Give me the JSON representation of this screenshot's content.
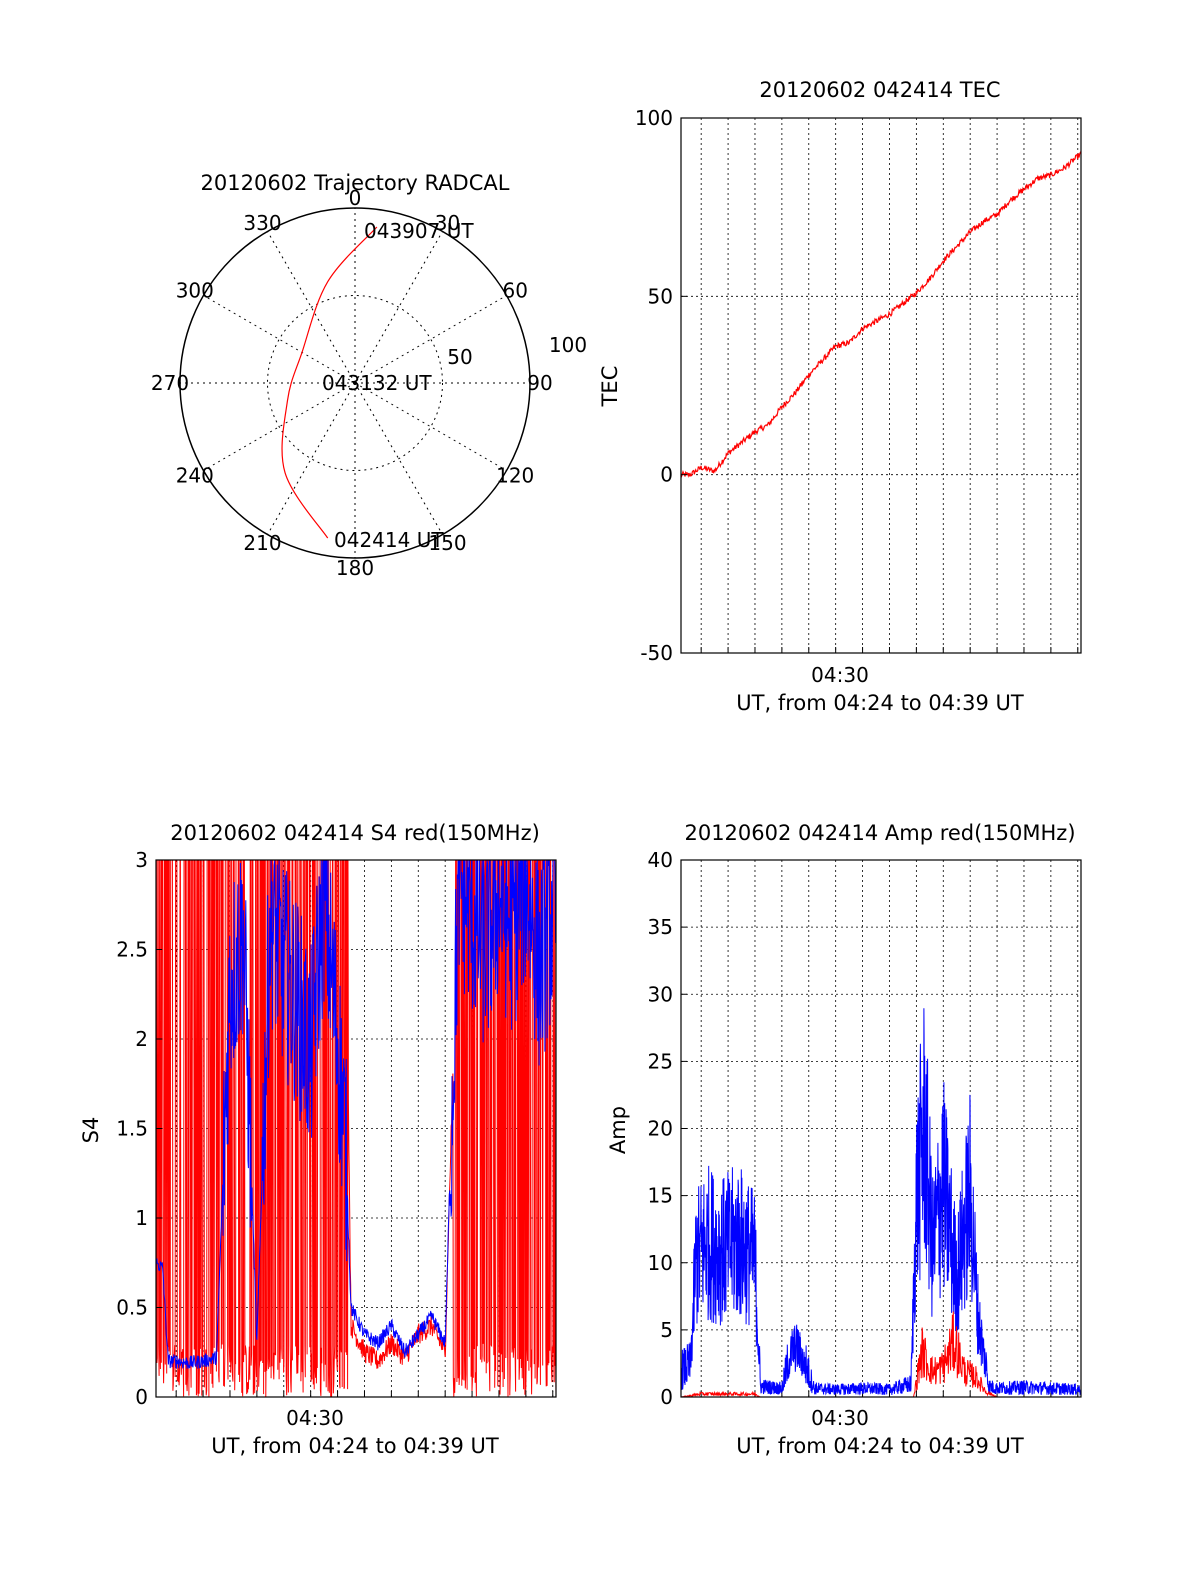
{
  "figure": {
    "colors": {
      "red": "#ff0000",
      "blue": "#0000ff",
      "axis": "#000000",
      "grid": "#000000"
    }
  },
  "polar": {
    "title": "20120602 Trajectory RADCAL",
    "azimuth_labels": [
      "0",
      "30",
      "60",
      "90",
      "120",
      "150",
      "180",
      "210",
      "240",
      "270",
      "300",
      "330"
    ],
    "ring_labels": [
      "50",
      "100"
    ],
    "track_labels": {
      "end": "043907 UT",
      "mid": "043132 UT",
      "start": "042414 UT"
    }
  },
  "tec": {
    "title": "20120602 042414 TEC",
    "ylabel": "TEC",
    "xtick": "04:30",
    "xlabel": "UT, from 04:24 to 04:39 UT",
    "yticks": [
      "100",
      "50",
      "0",
      "-50"
    ]
  },
  "s4": {
    "title": "20120602 042414 S4 red(150MHz)",
    "ylabel": "S4",
    "xtick": "04:30",
    "xlabel": "UT, from 04:24 to 04:39 UT",
    "yticks": [
      "3",
      "2.5",
      "2",
      "1.5",
      "1",
      "0.5",
      "0"
    ]
  },
  "amp": {
    "title": "20120602 042414 Amp red(150MHz)",
    "ylabel": "Amp",
    "xtick": "04:30",
    "xlabel": "UT, from 04:24 to 04:39 UT",
    "yticks": [
      "40",
      "35",
      "30",
      "25",
      "20",
      "15",
      "10",
      "5",
      "0"
    ]
  },
  "chart_data": [
    {
      "type": "scatter",
      "title": "20120602 Trajectory RADCAL",
      "coordinate_system": "polar (azimuth deg, zenith-angle rings)",
      "rings": [
        50,
        100
      ],
      "azimuth_ticks": [
        0,
        30,
        60,
        90,
        120,
        150,
        180,
        210,
        240,
        270,
        300,
        330
      ],
      "series": [
        {
          "color": "#ff0000",
          "points": [
            {
              "az": 8,
              "zen": 90,
              "label": "043907 UT"
            },
            {
              "az": 345,
              "zen": 60
            },
            {
              "az": 300,
              "zen": 35
            },
            {
              "az": 255,
              "zen": 40
            },
            {
              "az": 218,
              "zen": 65
            },
            {
              "az": 190,
              "zen": 90,
              "label": "042414 UT"
            }
          ]
        }
      ],
      "mid_label": "043132 UT"
    },
    {
      "type": "line",
      "title": "20120602 042414 TEC",
      "xlabel": "UT, from 04:24 to 04:39 UT",
      "ylabel": "TEC",
      "xlim_minutes": [
        24.25,
        39.12
      ],
      "ylim": [
        -50,
        100
      ],
      "x_tick": {
        "value": 30,
        "label": "04:30"
      },
      "series": [
        {
          "color": "#ff0000",
          "x_minutes": [
            24.25,
            24.6,
            25.0,
            25.5,
            26.0,
            26.5,
            27.0,
            27.5,
            28.0,
            28.5,
            29.0,
            29.5,
            30.0,
            30.5,
            31.0,
            31.5,
            32.0,
            32.5,
            33.0,
            33.5,
            34.0,
            34.5,
            35.0,
            35.5,
            36.0,
            36.5,
            37.0,
            37.5,
            38.0,
            38.5,
            39.12
          ],
          "values": [
            0,
            0,
            2,
            1,
            6,
            9,
            12,
            14,
            19,
            23,
            28,
            32,
            36,
            37,
            41,
            43,
            45,
            48,
            51,
            55,
            60,
            64,
            68,
            71,
            73,
            77,
            80,
            83,
            84,
            86,
            90
          ]
        }
      ]
    },
    {
      "type": "line",
      "title": "20120602 042414 S4 red(150MHz)",
      "xlabel": "UT, from 04:24 to 04:39 UT",
      "ylabel": "S4",
      "xlim_minutes": [
        24.25,
        39.12
      ],
      "ylim": [
        0,
        3
      ],
      "x_tick": {
        "value": 30,
        "label": "04:30"
      },
      "series": [
        {
          "name": "",
          "color": "#0000ff",
          "x_minutes": [
            24.25,
            24.5,
            24.7,
            25.0,
            25.5,
            26.0,
            26.5,
            27.0,
            27.5,
            28.0,
            28.5,
            29.0,
            29.5,
            30.0,
            30.5,
            31.0,
            31.3,
            31.5,
            32.0,
            32.5,
            33.0,
            33.5,
            34.0,
            34.5,
            35.0,
            35.5,
            36.0,
            36.5,
            37.0,
            37.5,
            38.0,
            38.5,
            39.0
          ],
          "values": [
            0.75,
            0.72,
            0.2,
            0.2,
            0.19,
            0.2,
            0.22,
            2.3,
            2.6,
            0.3,
            2.7,
            2.4,
            2.2,
            1.9,
            2.8,
            2.0,
            1.4,
            0.5,
            0.35,
            0.3,
            0.4,
            0.25,
            0.35,
            0.45,
            0.3,
            2.9,
            2.7,
            2.5,
            2.8,
            2.6,
            2.9,
            2.4,
            2.7
          ]
        },
        {
          "name": "",
          "color": "#ff0000",
          "x_minutes": [
            24.25,
            24.5,
            24.8,
            25.0,
            25.5,
            26.0,
            26.5,
            27.0,
            27.5,
            28.0,
            28.5,
            29.0,
            29.5,
            30.0,
            30.5,
            31.0,
            31.3,
            31.5,
            32.0,
            32.5,
            33.0,
            33.5,
            34.0,
            34.5,
            35.0,
            35.5,
            36.0,
            36.5,
            37.0,
            37.5,
            38.0,
            38.5,
            39.0
          ],
          "values": [
            3,
            0.6,
            3,
            0,
            3,
            0,
            3,
            0,
            3,
            0,
            3,
            0,
            3,
            0,
            3,
            1.0,
            3,
            0.4,
            0.25,
            0.2,
            0.3,
            0.22,
            0.35,
            0.4,
            0.25,
            3,
            0,
            3,
            0,
            3,
            0,
            3,
            0
          ]
        }
      ]
    },
    {
      "type": "line",
      "title": "20120602 042414 Amp red(150MHz)",
      "xlabel": "UT, from 04:24 to 04:39 UT",
      "ylabel": "Amp",
      "xlim_minutes": [
        24.25,
        39.12
      ],
      "ylim": [
        0,
        40
      ],
      "x_tick": {
        "value": 30,
        "label": "04:30"
      },
      "series": [
        {
          "name": "",
          "color": "#0000ff",
          "x_minutes": [
            24.25,
            24.6,
            24.8,
            25.2,
            25.8,
            26.4,
            27.0,
            27.2,
            28.0,
            28.4,
            28.6,
            29.2,
            30.0,
            31.0,
            32.0,
            32.8,
            33.0,
            33.3,
            33.6,
            34.0,
            34.5,
            35.0,
            35.3,
            35.7,
            36.0,
            37.0,
            38.0,
            39.12
          ],
          "values": [
            2.5,
            3,
            14,
            16,
            15,
            16,
            14,
            1,
            0.8,
            5,
            5,
            0.8,
            0.7,
            0.8,
            0.7,
            1.2,
            20,
            28,
            15,
            22,
            12,
            21,
            8,
            1,
            0.8,
            0.9,
            0.8,
            0.7
          ]
        },
        {
          "name": "",
          "color": "#ff0000",
          "x_minutes": [
            24.25,
            25.0,
            26.0,
            27.0,
            27.2,
            32.9,
            33.2,
            33.6,
            34.0,
            34.4,
            34.8,
            35.2,
            35.6,
            36.0
          ],
          "values": [
            0,
            0.3,
            0.3,
            0.3,
            0,
            0,
            4.5,
            2.5,
            3,
            5.5,
            2.5,
            2,
            0.5,
            0
          ]
        }
      ]
    }
  ]
}
